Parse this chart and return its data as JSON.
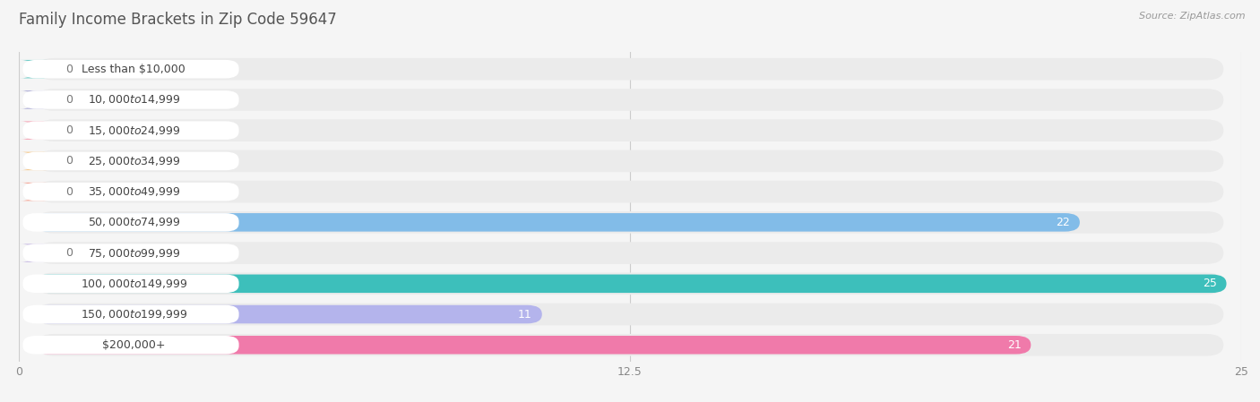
{
  "title": "Family Income Brackets in Zip Code 59647",
  "source": "Source: ZipAtlas.com",
  "categories": [
    "Less than $10,000",
    "$10,000 to $14,999",
    "$15,000 to $24,999",
    "$25,000 to $34,999",
    "$35,000 to $49,999",
    "$50,000 to $74,999",
    "$75,000 to $99,999",
    "$100,000 to $149,999",
    "$150,000 to $199,999",
    "$200,000+"
  ],
  "values": [
    0,
    0,
    0,
    0,
    0,
    22,
    0,
    25,
    11,
    21
  ],
  "bar_colors": [
    "#72cdc9",
    "#aaaad6",
    "#f5a3b5",
    "#f6ca8e",
    "#f5a898",
    "#82bce8",
    "#c8bce4",
    "#3dbfbb",
    "#b4b4ec",
    "#f07aaa"
  ],
  "row_bg_color": "#ebebeb",
  "label_box_color": "#ffffff",
  "xlim": [
    0,
    25
  ],
  "xticks": [
    0,
    12.5,
    25
  ],
  "background_color": "#f5f5f5",
  "title_fontsize": 12,
  "source_fontsize": 8,
  "label_fontsize": 9,
  "value_fontsize": 9
}
